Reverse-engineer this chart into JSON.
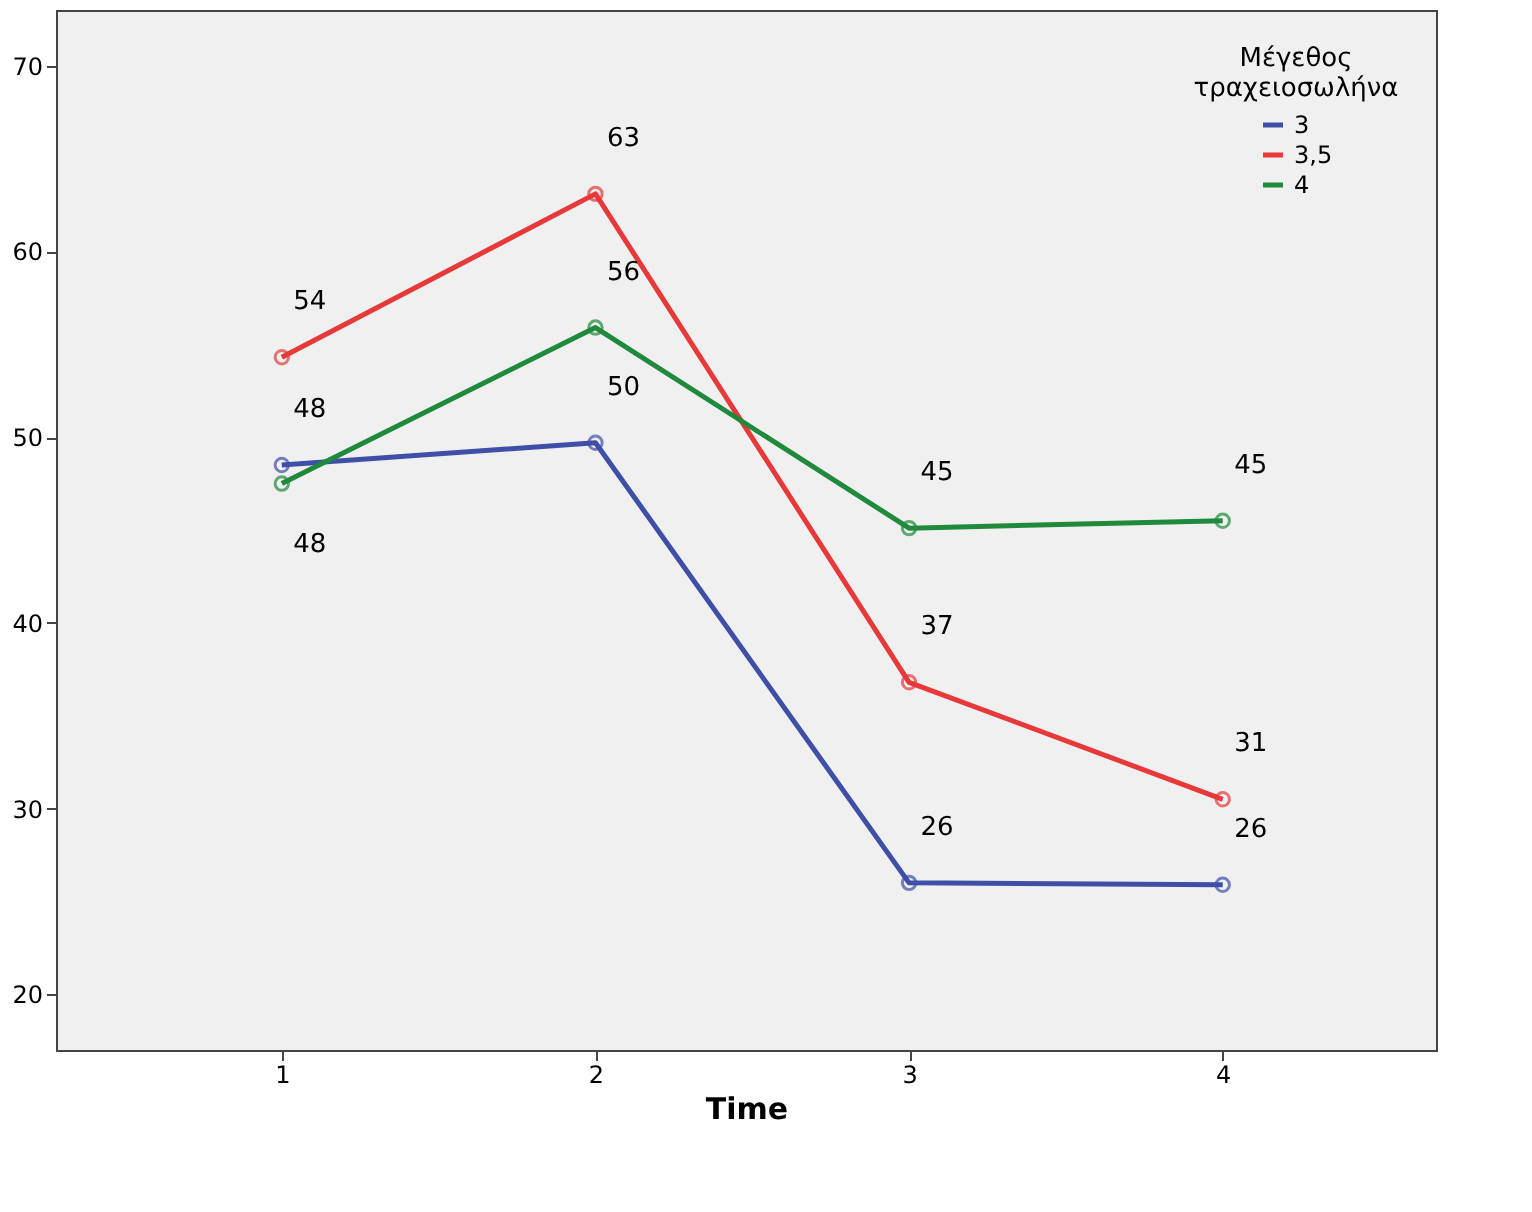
{
  "chart_data": {
    "type": "line",
    "xlabel": "Time",
    "legend_title": "Μέγεθος τραχειοσωλήνα",
    "legend": "top right",
    "marker": "circle",
    "line_style": "solid",
    "grid": false,
    "categories": [
      "1",
      "2",
      "3",
      "4"
    ],
    "ylim": [
      17,
      73
    ],
    "yticks": [
      20,
      30,
      40,
      50,
      60,
      70
    ],
    "series": [
      {
        "name": "3",
        "color": "#3f4fa8",
        "values": [
          48.5,
          49.7,
          26.0,
          25.9
        ],
        "value_labels": [
          "48",
          "50",
          "26",
          "26"
        ]
      },
      {
        "name": "3,5",
        "color": "#e8393a",
        "values": [
          54.3,
          63.1,
          36.8,
          30.5
        ],
        "value_labels": [
          "54",
          "63",
          "37",
          "31"
        ]
      },
      {
        "name": "4",
        "color": "#1f8a3c",
        "values": [
          47.5,
          55.9,
          45.1,
          45.5
        ],
        "value_labels": [
          "48",
          "56",
          "45",
          "45"
        ]
      }
    ]
  }
}
